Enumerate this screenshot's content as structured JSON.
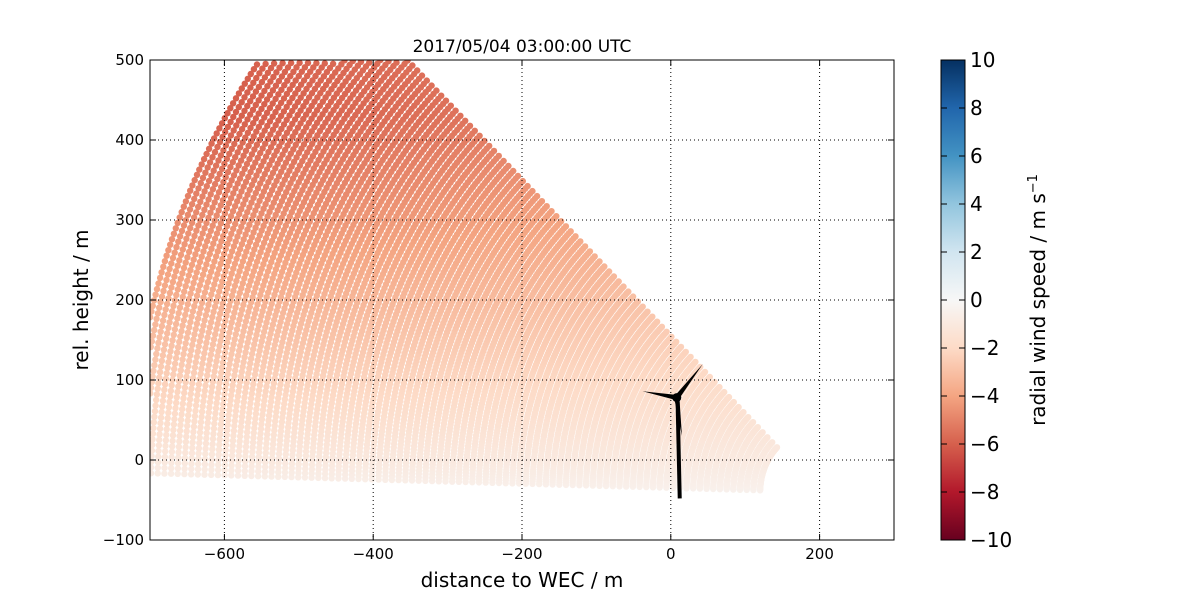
{
  "chart_data": {
    "type": "scatter",
    "title": "2017/05/04 03:00:00 UTC",
    "xlabel": "distance to WEC / m",
    "ylabel": "rel. height / m",
    "xlim": [
      -700,
      300
    ],
    "ylim": [
      -100,
      500
    ],
    "xticks": [
      -600,
      -400,
      -200,
      0,
      200
    ],
    "yticks": [
      -100,
      0,
      100,
      200,
      300,
      400,
      500
    ],
    "grid": true,
    "scan": {
      "description": "RHI lidar scan, points along beams radiating from the lidar",
      "elevation_range_deg": [
        1.5,
        44.5
      ],
      "range_m": [
        80,
        930
      ],
      "radial_wind_speed_range_m_s": [
        -6.2,
        -0.4
      ]
    },
    "turbine": {
      "hub_x": 8,
      "hub_y": 78,
      "tower_base_y": -48,
      "blade_tips": [
        [
          43,
          120
        ],
        [
          -38,
          86
        ],
        [
          15,
          30
        ]
      ]
    },
    "colorbar": {
      "label": "radial wind speed / m s",
      "label_superscript": "−1",
      "range": [
        -10,
        10
      ],
      "ticks": [
        "10",
        "8",
        "6",
        "4",
        "2",
        "0",
        "−2",
        "−4",
        "−6",
        "−8",
        "−10"
      ],
      "colormap": "RdBu",
      "colors": [
        "#67001f",
        "#b2182b",
        "#d6604d",
        "#f4a582",
        "#fddbc7",
        "#f7f7f7",
        "#d1e5f0",
        "#92c5de",
        "#4393c3",
        "#2166ac",
        "#053061"
      ]
    },
    "x_tick_labels": [
      "−600",
      "−400",
      "−200",
      "0",
      "200"
    ],
    "y_tick_labels": [
      "−100",
      "0",
      "100",
      "200",
      "300",
      "400",
      "500"
    ]
  }
}
